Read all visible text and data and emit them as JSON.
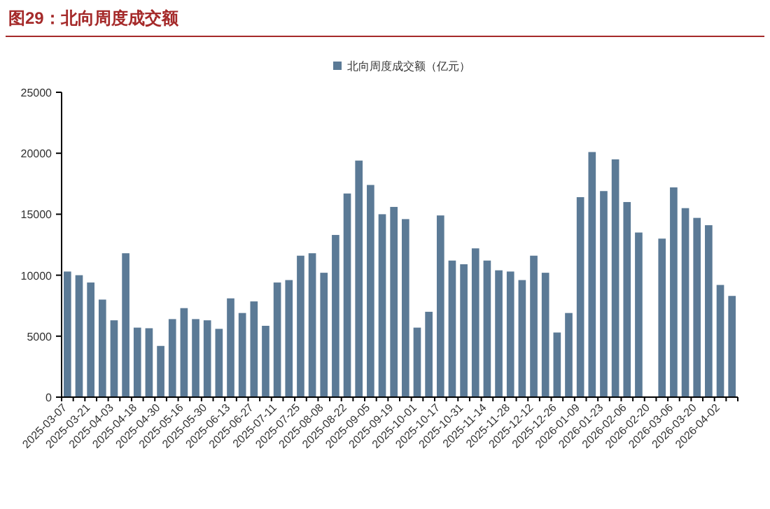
{
  "chart_data": {
    "type": "bar",
    "title": "图29：北向周度成交额",
    "categories": [
      "2025-03-07",
      null,
      "2025-03-21",
      null,
      "2025-04-03",
      null,
      "2025-04-18",
      null,
      "2025-04-30",
      null,
      "2025-05-16",
      null,
      "2025-05-30",
      null,
      "2025-06-13",
      null,
      "2025-06-27",
      null,
      "2025-07-11",
      null,
      "2025-07-25",
      null,
      "2025-08-08",
      null,
      "2025-08-22",
      null,
      "2025-09-05",
      null,
      "2025-09-19",
      null,
      "2025-10-01",
      null,
      "2025-10-17",
      null,
      "2025-10-31",
      null,
      "2025-11-14",
      null,
      "2025-11-28",
      null,
      "2025-12-12",
      null,
      "2025-12-26",
      null,
      "2026-01-09",
      null,
      "2026-01-23",
      null,
      "2026-02-06",
      null,
      "2026-02-20",
      null,
      "2026-03-06",
      null,
      "2026-03-20",
      null,
      "2026-04-02",
      null
    ],
    "series": [
      {
        "name": "北向周度成交额（亿元）",
        "color": "#5b7a96",
        "values": [
          10300,
          10000,
          9400,
          8000,
          6300,
          11800,
          5700,
          5650,
          4200,
          6400,
          7300,
          6400,
          6300,
          5600,
          8100,
          6900,
          7850,
          5850,
          9400,
          9600,
          11600,
          11800,
          10200,
          13300,
          16700,
          19400,
          17400,
          15000,
          15600,
          14600,
          5700,
          7000,
          14900,
          11200,
          10900,
          12200,
          11200,
          10400,
          10300,
          9600,
          11600,
          10200,
          5300,
          6900,
          16400,
          20100,
          16900,
          19500,
          16000,
          13500,
          null,
          13000,
          17200,
          15500,
          14700,
          14100,
          9200,
          8300
        ]
      }
    ],
    "ylim": [
      0,
      25000
    ],
    "yticks": [
      0,
      5000,
      10000,
      15000,
      20000,
      25000
    ],
    "grid": false,
    "legend": "top"
  }
}
